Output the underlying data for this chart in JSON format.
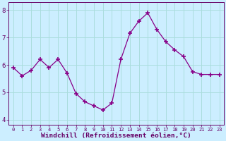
{
  "x": [
    0,
    1,
    2,
    3,
    4,
    5,
    6,
    7,
    8,
    9,
    10,
    11,
    12,
    13,
    14,
    15,
    16,
    17,
    18,
    19,
    20,
    21,
    22,
    23
  ],
  "y": [
    5.9,
    5.6,
    5.8,
    6.2,
    5.9,
    6.2,
    5.7,
    4.95,
    4.65,
    4.5,
    4.35,
    4.6,
    6.2,
    7.15,
    7.6,
    7.9,
    7.3,
    6.85,
    6.55,
    6.3,
    5.75,
    5.65,
    5.65,
    5.65
  ],
  "line_color": "#880088",
  "marker": "+",
  "marker_size": 4,
  "marker_lw": 1.2,
  "bg_color": "#cceeff",
  "grid_color": "#aadddd",
  "xlabel": "Windchill (Refroidissement éolien,°C)",
  "ylim": [
    3.8,
    8.3
  ],
  "xlim": [
    -0.5,
    23.5
  ],
  "xticks": [
    0,
    1,
    2,
    3,
    4,
    5,
    6,
    7,
    8,
    9,
    10,
    11,
    12,
    13,
    14,
    15,
    16,
    17,
    18,
    19,
    20,
    21,
    22,
    23
  ],
  "yticks": [
    4,
    5,
    6,
    7,
    8
  ],
  "tick_color": "#660066",
  "label_color": "#660066",
  "xtick_fontsize": 5.0,
  "ytick_fontsize": 6.5,
  "xlabel_fontsize": 6.8
}
